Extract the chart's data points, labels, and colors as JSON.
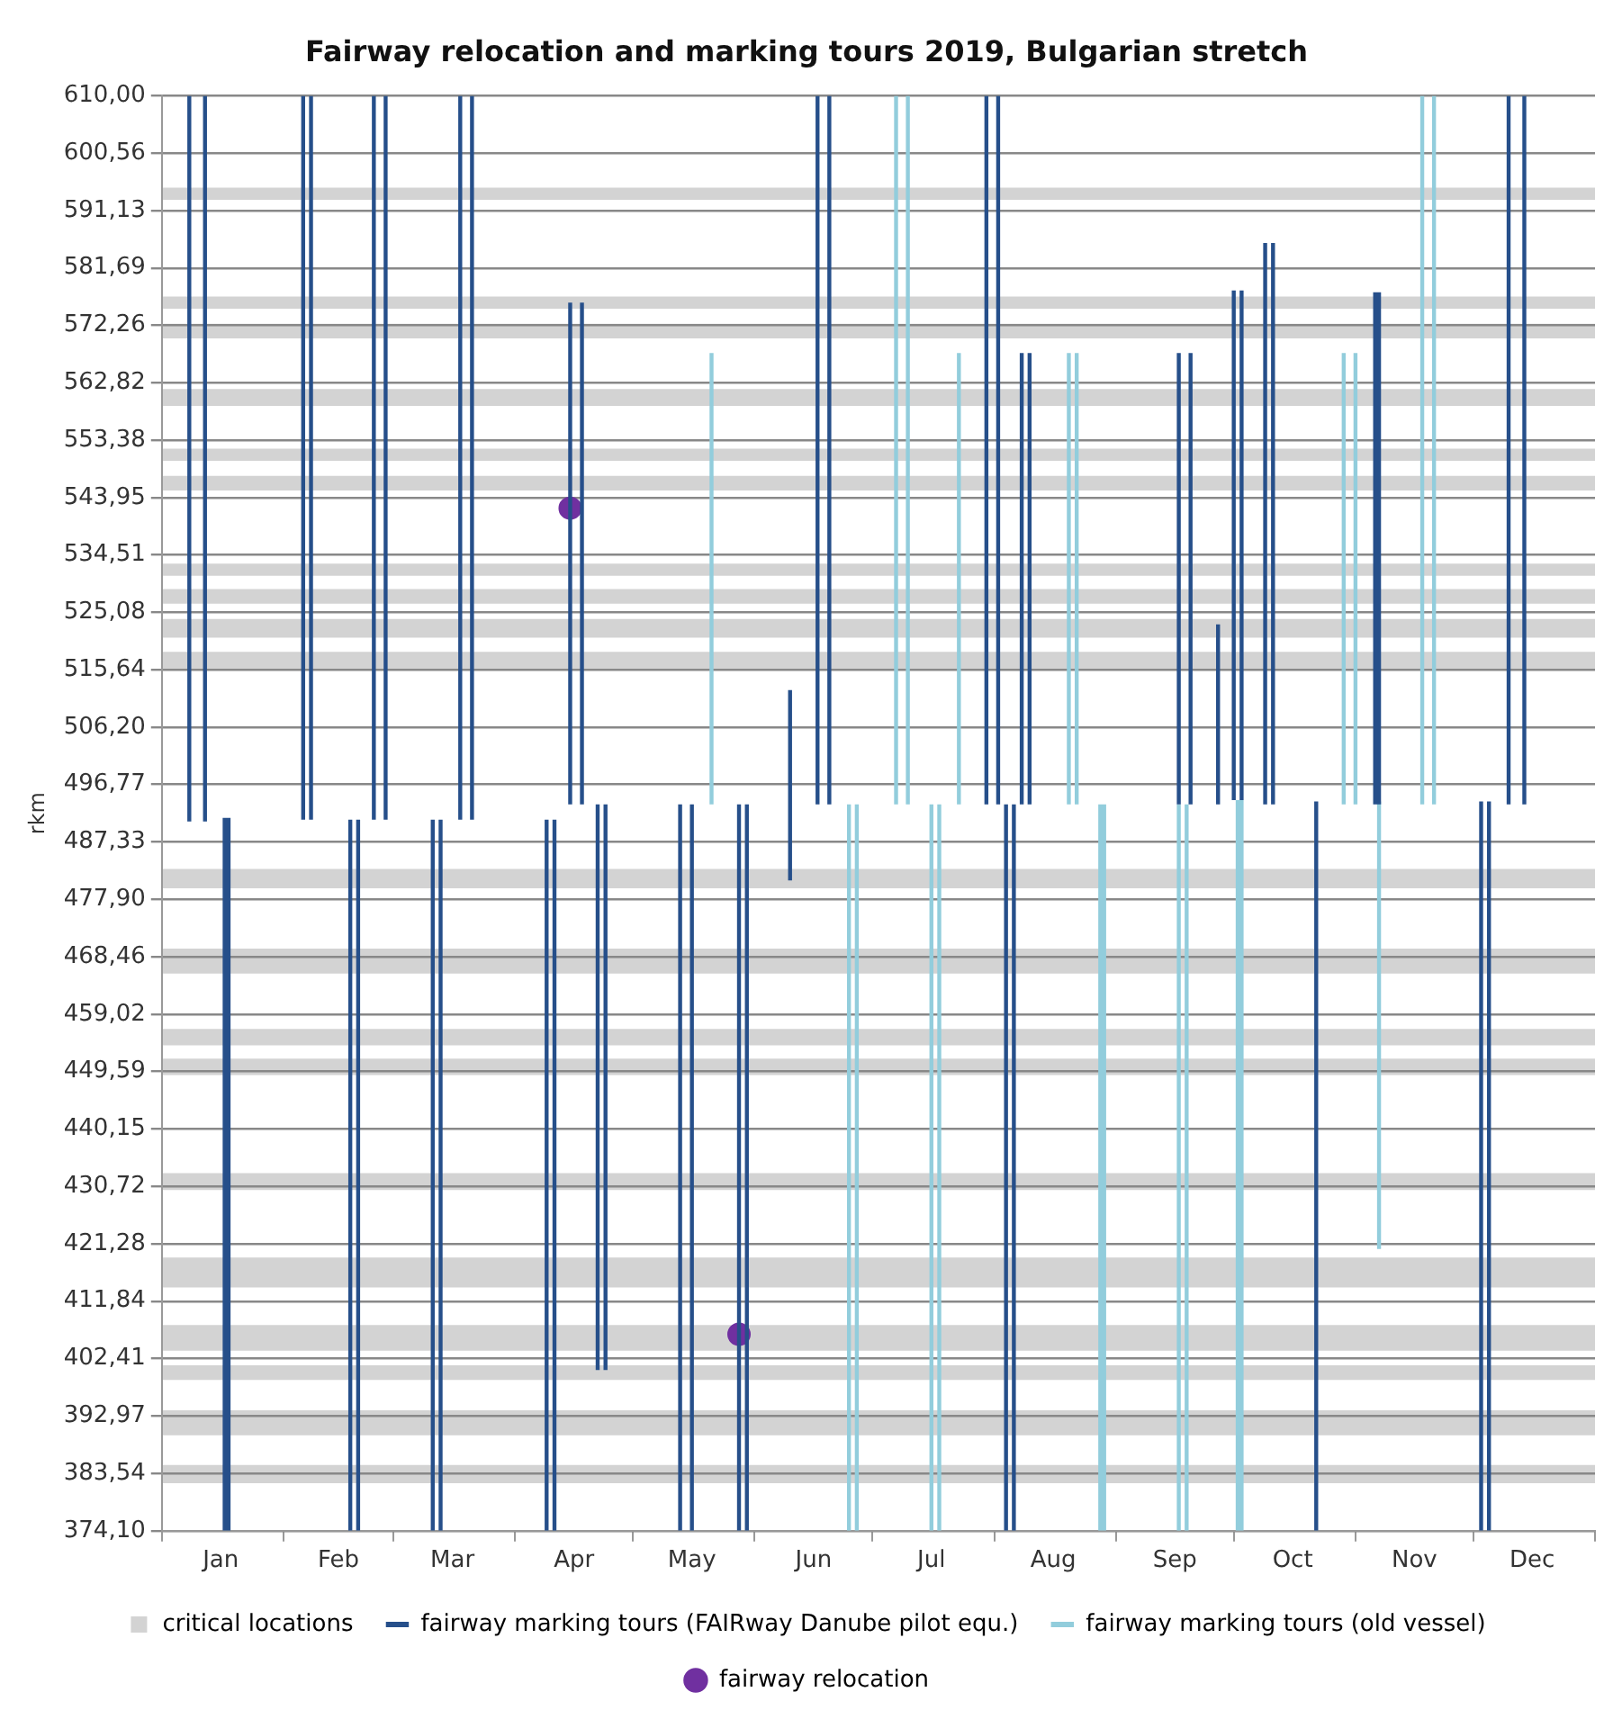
{
  "chart_data": {
    "type": "line",
    "title": "Fairway relocation and marking tours 2019, Bulgarian stretch",
    "ylabel": "rkm",
    "xlim": [
      "2019-01-01",
      "2020-01-01"
    ],
    "xticks": [
      {
        "value": "2019-01-01",
        "label": null
      },
      {
        "value": "2019-01-16",
        "label": "Jan"
      },
      {
        "value": "2019-02-01",
        "label": null
      },
      {
        "value": "2019-02-15",
        "label": "Feb"
      },
      {
        "value": "2019-03-01",
        "label": null
      },
      {
        "value": "2019-03-16",
        "label": "Mar"
      },
      {
        "value": "2019-04-01",
        "label": null
      },
      {
        "value": "2019-04-16",
        "label": "Apr"
      },
      {
        "value": "2019-05-01",
        "label": null
      },
      {
        "value": "2019-05-16",
        "label": "May"
      },
      {
        "value": "2019-06-01",
        "label": null
      },
      {
        "value": "2019-06-16",
        "label": "Jun"
      },
      {
        "value": "2019-07-01",
        "label": null
      },
      {
        "value": "2019-07-16",
        "label": "Jul"
      },
      {
        "value": "2019-08-01",
        "label": null
      },
      {
        "value": "2019-08-16",
        "label": "Aug"
      },
      {
        "value": "2019-09-01",
        "label": null
      },
      {
        "value": "2019-09-16",
        "label": "Sep"
      },
      {
        "value": "2019-10-01",
        "label": null
      },
      {
        "value": "2019-10-16",
        "label": "Oct"
      },
      {
        "value": "2019-11-01",
        "label": null
      },
      {
        "value": "2019-11-16",
        "label": "Nov"
      },
      {
        "value": "2019-12-01",
        "label": null
      },
      {
        "value": "2019-12-16",
        "label": "Dec"
      },
      {
        "value": "2020-01-01",
        "label": null
      }
    ],
    "ylim": [
      374.1,
      610
    ],
    "yticks": [
      {
        "value": 610,
        "label": "610,00"
      },
      {
        "value": 600.56,
        "label": "600,56"
      },
      {
        "value": 591.13,
        "label": "591,13"
      },
      {
        "value": 581.69,
        "label": "581,69"
      },
      {
        "value": 572.26,
        "label": "572,26"
      },
      {
        "value": 562.82,
        "label": "562,82"
      },
      {
        "value": 553.38,
        "label": "553,38"
      },
      {
        "value": 543.95,
        "label": "543,95"
      },
      {
        "value": 534.51,
        "label": "534,51"
      },
      {
        "value": 525.08,
        "label": "525,08"
      },
      {
        "value": 515.64,
        "label": "515,64"
      },
      {
        "value": 506.2,
        "label": "506,20"
      },
      {
        "value": 496.77,
        "label": "496,77"
      },
      {
        "value": 487.33,
        "label": "487,33"
      },
      {
        "value": 477.9,
        "label": "477,90"
      },
      {
        "value": 468.46,
        "label": "468,46"
      },
      {
        "value": 459.02,
        "label": "459,02"
      },
      {
        "value": 449.59,
        "label": "449,59"
      },
      {
        "value": 440.15,
        "label": "440,15"
      },
      {
        "value": 430.72,
        "label": "430,72"
      },
      {
        "value": 421.28,
        "label": "421,28"
      },
      {
        "value": 411.84,
        "label": "411,84"
      },
      {
        "value": 402.41,
        "label": "402,41"
      },
      {
        "value": 392.97,
        "label": "392,97"
      },
      {
        "value": 383.54,
        "label": "383,54"
      },
      {
        "value": 374.1,
        "label": "374,10"
      }
    ],
    "grid": "y",
    "legend": "bottom",
    "bands": [
      {
        "axis": "y",
        "from": 592.9,
        "to": 594.9,
        "color": "#d3d3d3",
        "label": "critical locations"
      },
      {
        "axis": "y",
        "from": 575.0,
        "to": 577.0,
        "color": "#d3d3d3"
      },
      {
        "axis": "y",
        "from": 570.1,
        "to": 572.5,
        "color": "#d3d3d3"
      },
      {
        "axis": "y",
        "from": 559.0,
        "to": 561.8,
        "color": "#d3d3d3"
      },
      {
        "axis": "y",
        "from": 550.0,
        "to": 552.0,
        "color": "#d3d3d3"
      },
      {
        "axis": "y",
        "from": 545.1,
        "to": 547.5,
        "color": "#d3d3d3"
      },
      {
        "axis": "y",
        "from": 531.1,
        "to": 533.1,
        "color": "#d3d3d3"
      },
      {
        "axis": "y",
        "from": 526.5,
        "to": 528.9,
        "color": "#d3d3d3"
      },
      {
        "axis": "y",
        "from": 520.9,
        "to": 524.0,
        "color": "#d3d3d3"
      },
      {
        "axis": "y",
        "from": 515.7,
        "to": 518.6,
        "color": "#d3d3d3"
      },
      {
        "axis": "y",
        "from": 479.7,
        "to": 482.9,
        "color": "#d3d3d3"
      },
      {
        "axis": "y",
        "from": 465.7,
        "to": 469.8,
        "color": "#d3d3d3"
      },
      {
        "axis": "y",
        "from": 453.9,
        "to": 456.6,
        "color": "#d3d3d3"
      },
      {
        "axis": "y",
        "from": 449.0,
        "to": 451.7,
        "color": "#d3d3d3"
      },
      {
        "axis": "y",
        "from": 430.1,
        "to": 432.9,
        "color": "#d3d3d3"
      },
      {
        "axis": "y",
        "from": 414.1,
        "to": 419.0,
        "color": "#d3d3d3"
      },
      {
        "axis": "y",
        "from": 403.7,
        "to": 407.9,
        "color": "#d3d3d3"
      },
      {
        "axis": "y",
        "from": 398.9,
        "to": 401.3,
        "color": "#d3d3d3"
      },
      {
        "axis": "y",
        "from": 389.8,
        "to": 393.9,
        "color": "#d3d3d3"
      },
      {
        "axis": "y",
        "from": 381.9,
        "to": 384.9,
        "color": "#d3d3d3"
      }
    ],
    "series": [
      {
        "name": "fairway marking tours (FAIRway Danube pilot equ.)",
        "color": "#264f8a",
        "x": [
          "2019-01-08",
          "2019-01-08",
          null,
          "2019-01-12",
          "2019-01-12",
          null,
          "2019-01-17",
          "2019-01-17",
          null,
          "2019-01-18",
          "2019-01-18",
          null,
          "2019-02-06",
          "2019-02-06",
          null,
          "2019-02-08",
          "2019-02-08",
          null,
          "2019-02-18",
          "2019-02-18",
          null,
          "2019-02-20",
          "2019-02-20",
          null,
          "2019-02-24",
          "2019-02-24",
          null,
          "2019-02-27",
          "2019-02-27",
          null,
          "2019-03-11",
          "2019-03-11",
          null,
          "2019-03-13",
          "2019-03-13",
          null,
          "2019-03-18",
          "2019-03-18",
          null,
          "2019-03-21",
          "2019-03-21",
          null,
          "2019-04-09",
          "2019-04-09",
          null,
          "2019-04-11",
          "2019-04-11",
          null,
          "2019-04-15",
          "2019-04-15",
          null,
          "2019-04-18",
          "2019-04-18",
          null,
          "2019-04-22",
          "2019-04-22",
          null,
          "2019-04-24",
          "2019-04-24",
          null,
          "2019-05-13",
          "2019-05-13",
          null,
          "2019-05-16",
          "2019-05-16",
          null,
          "2019-05-28",
          "2019-05-28",
          null,
          "2019-05-30",
          "2019-05-30",
          null,
          "2019-06-10",
          "2019-06-10",
          null,
          "2019-06-17",
          "2019-06-17",
          null,
          "2019-06-20",
          "2019-06-20",
          null,
          "2019-07-30",
          "2019-07-30",
          null,
          "2019-08-02",
          "2019-08-02",
          null,
          "2019-08-04",
          "2019-08-04",
          null,
          "2019-08-06",
          "2019-08-06",
          null,
          "2019-08-08",
          "2019-08-08",
          null,
          "2019-08-10",
          "2019-08-10",
          null,
          "2019-09-17",
          "2019-09-17",
          null,
          "2019-09-20",
          "2019-09-20",
          null,
          "2019-09-27",
          "2019-09-27",
          null,
          "2019-10-01",
          "2019-10-01",
          null,
          "2019-10-03",
          "2019-10-03",
          null,
          "2019-10-09",
          "2019-10-09",
          null,
          "2019-10-11",
          "2019-10-11",
          null,
          "2019-10-22",
          "2019-10-22",
          null,
          "2019-11-06",
          "2019-11-06",
          null,
          "2019-11-07",
          "2019-11-07",
          null,
          "2019-12-03",
          "2019-12-03",
          null,
          "2019-12-05",
          "2019-12-05",
          null,
          "2019-12-10",
          "2019-12-10",
          null,
          "2019-12-14",
          "2019-12-14"
        ],
        "values": [
          490.7,
          610,
          null,
          490.7,
          610,
          null,
          374.1,
          491.3,
          null,
          374.1,
          491.3,
          null,
          491,
          610,
          null,
          491,
          610,
          null,
          374.1,
          491,
          null,
          374.1,
          491,
          null,
          491,
          610,
          null,
          491,
          610,
          null,
          374.1,
          491,
          null,
          374.1,
          491,
          null,
          491,
          610,
          null,
          491,
          610,
          null,
          374.1,
          491,
          null,
          374.1,
          491,
          null,
          493.5,
          576,
          null,
          493.5,
          576,
          null,
          400.5,
          493.5,
          null,
          400.5,
          493.5,
          null,
          374.1,
          493.5,
          null,
          374.1,
          493.5,
          null,
          374.1,
          493.5,
          null,
          374.1,
          493.5,
          null,
          481,
          512.3,
          null,
          493.5,
          610,
          null,
          493.5,
          610,
          null,
          493.5,
          610,
          null,
          493.5,
          610,
          null,
          374.1,
          493.5,
          null,
          374.1,
          493.5,
          null,
          493.5,
          567.7,
          null,
          493.5,
          567.7,
          null,
          493.5,
          567.7,
          null,
          493.5,
          567.7,
          null,
          493.5,
          523.1,
          null,
          494.2,
          578,
          null,
          494.2,
          578,
          null,
          493.5,
          585.8,
          null,
          493.5,
          585.8,
          null,
          374.1,
          494,
          null,
          493.5,
          577.7,
          null,
          493.5,
          577.7,
          null,
          374.1,
          494,
          null,
          374.1,
          494,
          null,
          493.5,
          610,
          null,
          493.5,
          610
        ]
      },
      {
        "name": "fairway marking tours (old vessel)",
        "color": "#92cddc",
        "x": [
          "2019-05-21",
          "2019-05-21",
          null,
          "2019-06-25",
          "2019-06-25",
          null,
          "2019-06-27",
          "2019-06-27",
          null,
          "2019-07-07",
          "2019-07-07",
          null,
          "2019-07-10",
          "2019-07-10",
          null,
          "2019-07-16",
          "2019-07-16",
          null,
          "2019-07-18",
          "2019-07-18",
          null,
          "2019-07-23",
          "2019-07-23",
          null,
          "2019-08-20",
          "2019-08-20",
          null,
          "2019-08-22",
          "2019-08-22",
          null,
          "2019-08-28",
          "2019-08-28",
          null,
          "2019-08-29",
          "2019-08-29",
          null,
          "2019-09-17",
          "2019-09-17",
          null,
          "2019-09-19",
          "2019-09-19",
          null,
          "2019-10-02",
          "2019-10-02",
          null,
          "2019-10-03",
          "2019-10-03",
          null,
          "2019-10-29",
          "2019-10-29",
          null,
          "2019-11-01",
          "2019-11-01",
          null,
          "2019-11-07",
          "2019-11-07",
          null,
          "2019-11-18",
          "2019-11-18",
          null,
          "2019-11-21",
          "2019-11-21"
        ],
        "values": [
          493.5,
          567.7,
          null,
          374.1,
          493.5,
          null,
          374.1,
          493.5,
          null,
          493.5,
          610,
          null,
          493.5,
          610,
          null,
          374.1,
          493.5,
          null,
          374.1,
          493.5,
          null,
          493.5,
          567.7,
          null,
          493.5,
          567.7,
          null,
          493.5,
          567.7,
          null,
          374.1,
          493.5,
          null,
          374.1,
          493.5,
          null,
          374.1,
          493.5,
          null,
          374.1,
          493.5,
          null,
          374.1,
          494.2,
          null,
          374.1,
          494.2,
          null,
          493.5,
          567.7,
          null,
          493.5,
          567.7,
          null,
          420.4,
          494,
          null,
          493.5,
          610,
          null,
          493.5,
          610
        ]
      },
      {
        "name": "fairway relocation",
        "type": "scatter",
        "color": "#7030a0",
        "marker": "circle",
        "x": [
          "2019-04-15",
          "2019-05-28"
        ],
        "values": [
          542.2,
          406.4
        ]
      }
    ]
  }
}
